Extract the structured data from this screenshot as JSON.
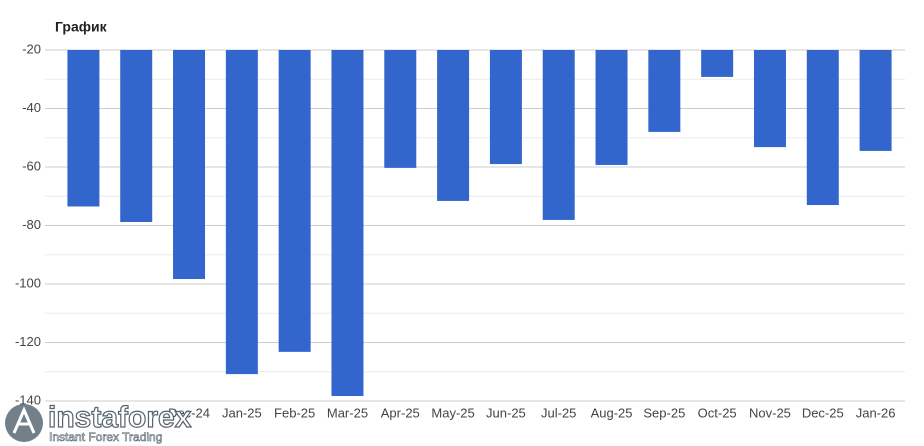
{
  "chart_data": {
    "type": "bar",
    "title": "График",
    "categories": [
      null,
      null,
      "Dec-24",
      "Jan-25",
      "Feb-25",
      "Mar-25",
      "Apr-25",
      "May-25",
      "Jun-25",
      "Jul-25",
      "Aug-25",
      "Sep-25",
      "Oct-25",
      "Nov-25",
      "Dec-25",
      "Jan-26"
    ],
    "values": [
      -73.5,
      -78.8,
      -98.3,
      -130.8,
      -123.2,
      -138.3,
      -60.3,
      -71.6,
      -59,
      -78.1,
      -59.3,
      -48,
      -29.2,
      -53.2,
      -73,
      -54.5
    ],
    "color": "#3366cc",
    "ylim": [
      -140,
      -20
    ],
    "yticks": [
      -20,
      -40,
      -60,
      -80,
      -100,
      -120,
      -140
    ],
    "minor_yticks": [
      -30,
      -50,
      -70,
      -90,
      -110,
      -130
    ],
    "grid": true
  },
  "watermark": {
    "brand": "instaforex",
    "tagline": "Instant Forex Trading"
  }
}
